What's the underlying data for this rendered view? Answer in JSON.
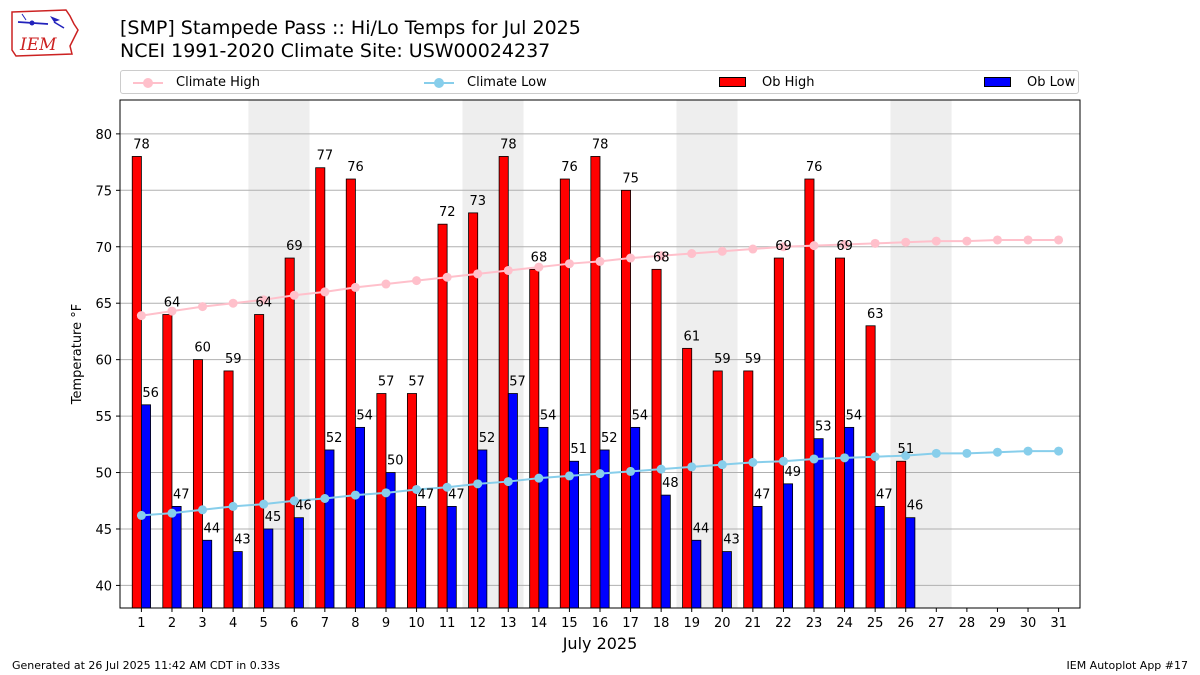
{
  "header": {
    "title_line1": "[SMP] Stampede Pass :: Hi/Lo Temps for Jul 2025",
    "title_line2": "NCEI 1991-2020 Climate Site: USW00024237",
    "logo_text": "IEM"
  },
  "legend": {
    "climate_high": "Climate High",
    "climate_low": "Climate Low",
    "ob_high": "Ob High",
    "ob_low": "Ob Low"
  },
  "colors": {
    "climate_high": "#ffc0cb",
    "climate_low": "#87ceeb",
    "ob_high": "#ff0000",
    "ob_low": "#0000ff",
    "weekend_band": "#eeeeee",
    "grid": "#b0b0b0"
  },
  "footer": {
    "generated": "Generated at 26 Jul 2025 11:42 AM CDT in 0.33s",
    "app": "IEM Autoplot App #17"
  },
  "chart_data": {
    "type": "bar",
    "xlabel": "July 2025",
    "ylabel": "Temperature °F",
    "ylim": [
      38,
      83
    ],
    "yticks": [
      40,
      45,
      50,
      55,
      60,
      65,
      70,
      75,
      80
    ],
    "grid": true,
    "legend_position": "top",
    "categories": [
      "1",
      "2",
      "3",
      "4",
      "5",
      "6",
      "7",
      "8",
      "9",
      "10",
      "11",
      "12",
      "13",
      "14",
      "15",
      "16",
      "17",
      "18",
      "19",
      "20",
      "21",
      "22",
      "23",
      "24",
      "25",
      "26",
      "27",
      "28",
      "29",
      "30",
      "31"
    ],
    "shaded_days": [
      5,
      6,
      12,
      13,
      19,
      20,
      26,
      27
    ],
    "series": [
      {
        "name": "Ob High",
        "kind": "bar",
        "values": [
          78,
          64,
          60,
          59,
          64,
          69,
          77,
          76,
          57,
          57,
          72,
          73,
          78,
          68,
          76,
          78,
          75,
          68,
          61,
          59,
          59,
          69,
          76,
          69,
          63,
          51,
          null,
          null,
          null,
          null,
          null
        ]
      },
      {
        "name": "Ob Low",
        "kind": "bar",
        "values": [
          56,
          47,
          44,
          43,
          45,
          46,
          52,
          54,
          50,
          47,
          47,
          52,
          57,
          54,
          51,
          52,
          54,
          48,
          44,
          43,
          47,
          49,
          53,
          54,
          47,
          46,
          null,
          null,
          null,
          null,
          null
        ]
      },
      {
        "name": "Climate High",
        "kind": "line",
        "values": [
          63.9,
          64.3,
          64.7,
          65.0,
          65.3,
          65.7,
          66.0,
          66.4,
          66.7,
          67.0,
          67.3,
          67.6,
          67.9,
          68.2,
          68.5,
          68.7,
          69.0,
          69.2,
          69.4,
          69.6,
          69.8,
          70.0,
          70.1,
          70.2,
          70.3,
          70.4,
          70.5,
          70.5,
          70.6,
          70.6,
          70.6
        ]
      },
      {
        "name": "Climate Low",
        "kind": "line",
        "values": [
          46.2,
          46.4,
          46.7,
          47.0,
          47.2,
          47.5,
          47.7,
          48.0,
          48.2,
          48.5,
          48.7,
          49.0,
          49.2,
          49.5,
          49.7,
          49.9,
          50.1,
          50.3,
          50.5,
          50.7,
          50.9,
          51.0,
          51.2,
          51.3,
          51.4,
          51.5,
          51.7,
          51.7,
          51.8,
          51.9,
          51.9
        ]
      }
    ]
  }
}
